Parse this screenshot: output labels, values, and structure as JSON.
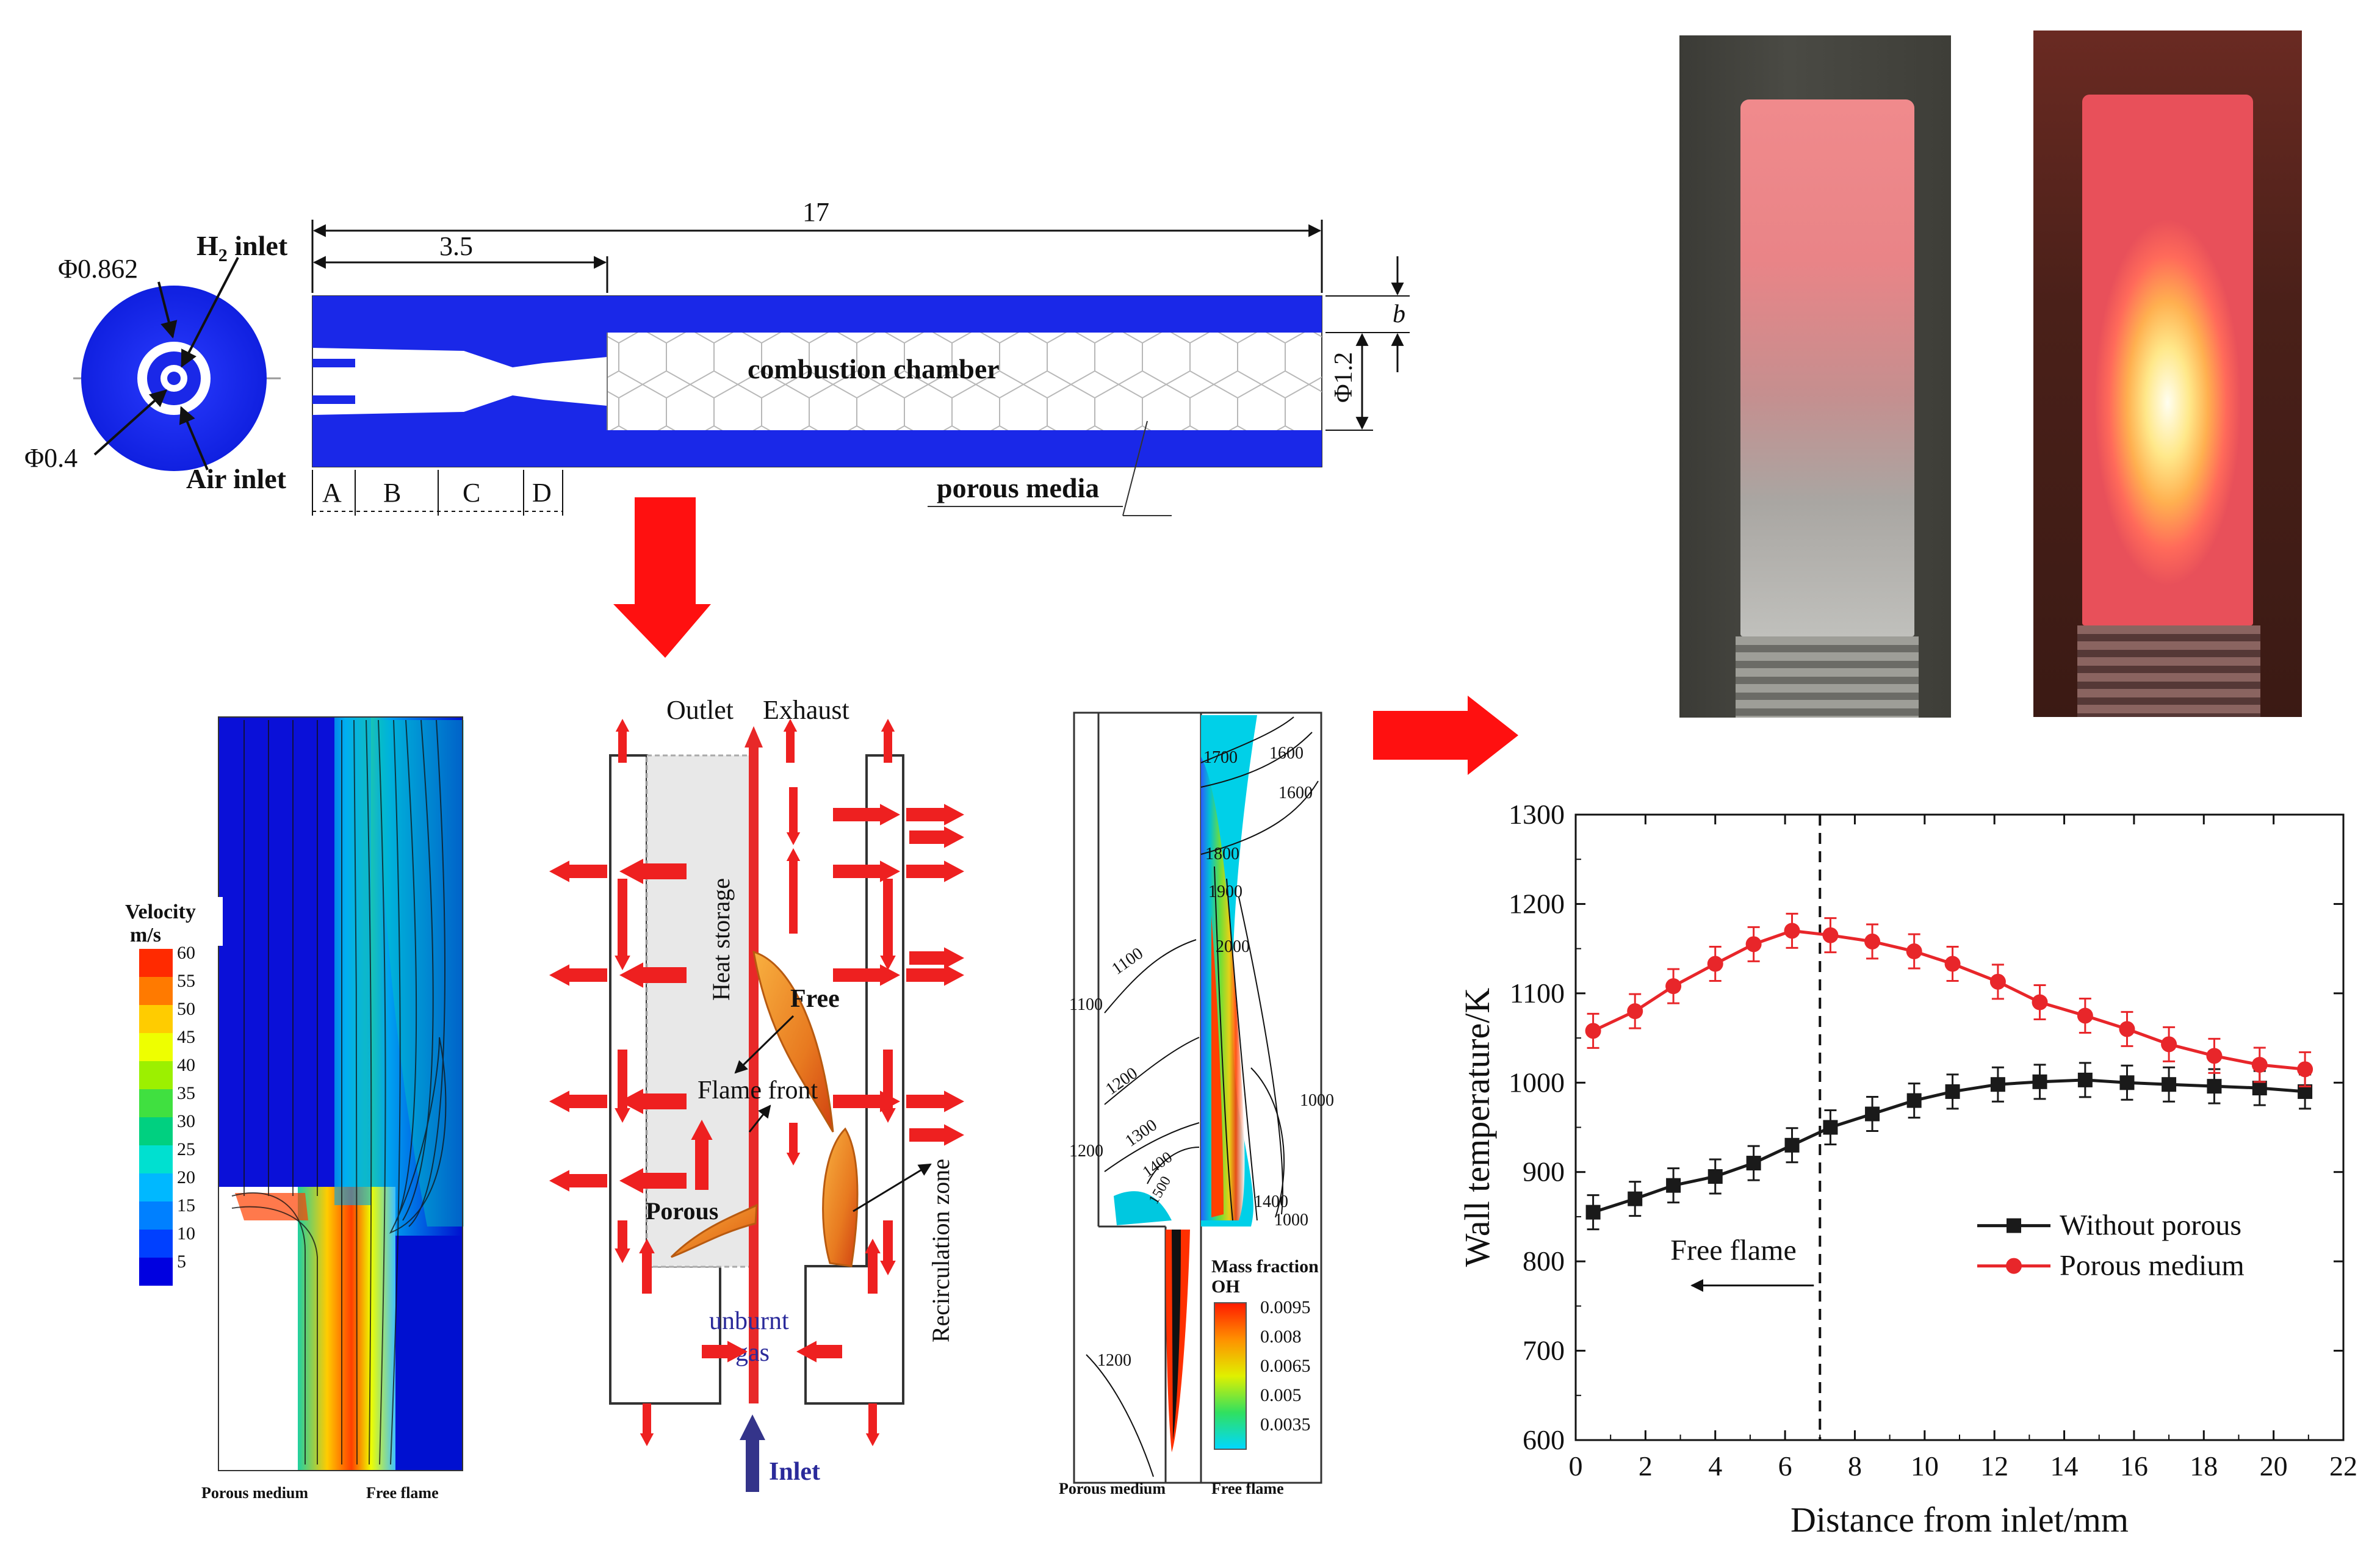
{
  "schematic": {
    "total_length": "17",
    "inlet_length": "3.5",
    "h2_inlet": "H",
    "h2_sub": "2",
    "h2_suffix": " inlet",
    "air_inlet": "Air inlet",
    "dia_outer": "Φ0.862",
    "dia_inner": "Φ0.4",
    "dia_chamber": "Φ1.2",
    "wall_b": "b",
    "chamber_label": "combustion chamber",
    "porous_label": "porous media",
    "sections": [
      "A",
      "B",
      "C",
      "D"
    ]
  },
  "velocity_panel": {
    "title": "Velocity",
    "unit": "m/s",
    "ticks": [
      "60",
      "55",
      "50",
      "45",
      "40",
      "35",
      "30",
      "25",
      "20",
      "15",
      "10",
      "5"
    ],
    "label_left": "Porous medium",
    "label_right": "Free flame",
    "colors": [
      "#ff2a00",
      "#ff7a00",
      "#ffcc00",
      "#eeff00",
      "#9cf000",
      "#40e040",
      "#00d080",
      "#00e0d0",
      "#00b8ff",
      "#0080ff",
      "#0040ff",
      "#0000e0"
    ]
  },
  "mechanism_panel": {
    "outlet": "Outlet",
    "exhaust": "Exhaust",
    "heat_storage": "Heat storage",
    "free": "Free",
    "flame_front": "Flame front",
    "porous": "Porous",
    "recirculation": "Recirculation zone",
    "unburnt_gas_1": "unburnt",
    "unburnt_gas_2": "gas",
    "inlet": "Inlet"
  },
  "contour_panel": {
    "mass_fraction": "Mass fraction",
    "species": "OH",
    "ticks": [
      "0.0095",
      "0.008",
      "0.0065",
      "0.005",
      "0.0035"
    ],
    "isotherms": [
      "1700",
      "1600",
      "1600",
      "1800",
      "1900",
      "2000",
      "1100",
      "1100",
      "1200",
      "1200",
      "1300",
      "1400",
      "1500",
      "1400",
      "1000",
      "1000",
      "1200"
    ],
    "label_left": "Porous medium",
    "label_right": "Free flame"
  },
  "chart_data": {
    "type": "line",
    "xlabel": "Distance from inlet/mm",
    "ylabel": "Wall temperature/K",
    "xlim": [
      0,
      22
    ],
    "ylim": [
      600,
      1300
    ],
    "xticks": [
      0,
      2,
      4,
      6,
      8,
      10,
      12,
      14,
      16,
      18,
      20,
      22
    ],
    "yticks": [
      600,
      700,
      800,
      900,
      1000,
      1100,
      1200,
      1300
    ],
    "legend_position": "lower-right",
    "divider_x": 7,
    "annotation": "Free flame",
    "series": [
      {
        "name": "Without porous",
        "color": "#1a1a1a",
        "marker": "square",
        "x": [
          0.5,
          1.7,
          2.8,
          4.0,
          5.1,
          6.2,
          7.3,
          8.5,
          9.7,
          10.8,
          12.1,
          13.3,
          14.6,
          15.8,
          17.0,
          18.3,
          19.6,
          20.9
        ],
        "y": [
          855,
          870,
          885,
          895,
          910,
          930,
          950,
          965,
          980,
          990,
          998,
          1001,
          1003,
          1000,
          998,
          996,
          994,
          990
        ]
      },
      {
        "name": "Porous medium",
        "color": "#e8262a",
        "marker": "circle",
        "x": [
          0.5,
          1.7,
          2.8,
          4.0,
          5.1,
          6.2,
          7.3,
          8.5,
          9.7,
          10.8,
          12.1,
          13.3,
          14.6,
          15.8,
          17.0,
          18.3,
          19.6,
          20.9
        ],
        "y": [
          1058,
          1080,
          1108,
          1133,
          1155,
          1170,
          1165,
          1158,
          1147,
          1133,
          1113,
          1090,
          1075,
          1060,
          1043,
          1030,
          1020,
          1015
        ]
      }
    ]
  }
}
